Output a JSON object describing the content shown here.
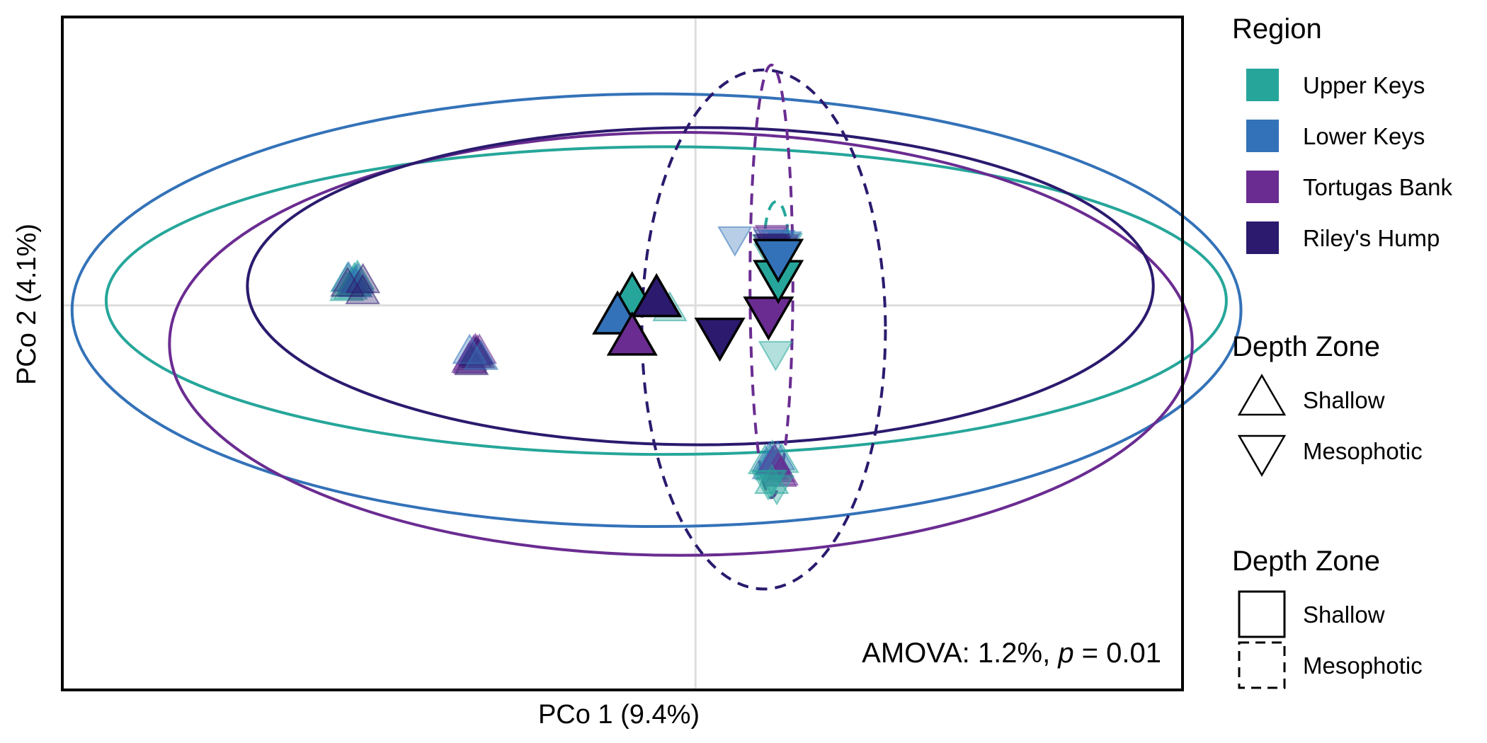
{
  "chart_data": {
    "type": "scatter",
    "title": "",
    "xlabel": "PCo 1 (9.4%)",
    "ylabel": "PCo 2 (4.1%)",
    "xlim": [
      -0.65,
      0.5
    ],
    "ylim": [
      -0.4,
      0.3
    ],
    "grid": {
      "major_lines_at_zero": true
    },
    "annotation": {
      "prefix": "AMOVA: 1.2%, ",
      "italic": "p",
      "suffix": " =  0.01"
    },
    "legend": {
      "placement": "right",
      "region_title": "Region",
      "regions": [
        {
          "name": "Upper Keys",
          "color": "#26A69A"
        },
        {
          "name": "Lower Keys",
          "color": "#3372B8"
        },
        {
          "name": "Tortugas Bank",
          "color": "#6A2C91"
        },
        {
          "name": "Riley's Hump",
          "color": "#2B1A6E"
        }
      ],
      "shape_title": "Depth Zone",
      "shapes": [
        {
          "name": "Shallow",
          "marker": "triangle-up"
        },
        {
          "name": "Mesophotic",
          "marker": "triangle-down"
        }
      ],
      "linetype_title": "Depth Zone",
      "linetypes": [
        {
          "name": "Shallow",
          "dash": "solid"
        },
        {
          "name": "Mesophotic",
          "dash": "dashed"
        }
      ]
    },
    "centroids": [
      {
        "region": "Upper Keys",
        "depth": "Shallow",
        "x": -0.065,
        "y": 0.007
      },
      {
        "region": "Lower Keys",
        "depth": "Shallow",
        "x": -0.08,
        "y": -0.013
      },
      {
        "region": "Riley's Hump",
        "depth": "Shallow",
        "x": -0.04,
        "y": 0.005
      },
      {
        "region": "Tortugas Bank",
        "depth": "Shallow",
        "x": -0.065,
        "y": -0.035
      },
      {
        "region": "Riley's Hump",
        "depth": "Mesophotic",
        "x": 0.025,
        "y": -0.03
      },
      {
        "region": "Tortugas Bank",
        "depth": "Mesophotic",
        "x": 0.075,
        "y": -0.008
      },
      {
        "region": "Upper Keys",
        "depth": "Mesophotic",
        "x": 0.085,
        "y": 0.03
      },
      {
        "region": "Lower Keys",
        "depth": "Mesophotic",
        "x": 0.085,
        "y": 0.052
      }
    ],
    "clusters": [
      {
        "x": -0.35,
        "y": 0.022,
        "region": "Upper Keys",
        "depth": "Shallow",
        "n": 8
      },
      {
        "x": -0.35,
        "y": 0.02,
        "region": "Lower Keys",
        "depth": "Shallow",
        "n": 3
      },
      {
        "x": -0.35,
        "y": 0.02,
        "region": "Riley's Hump",
        "depth": "Shallow",
        "n": 3
      },
      {
        "x": -0.225,
        "y": -0.052,
        "region": "Tortugas Bank",
        "depth": "Shallow",
        "n": 8
      },
      {
        "x": -0.225,
        "y": -0.055,
        "region": "Riley's Hump",
        "depth": "Shallow",
        "n": 3
      },
      {
        "x": -0.225,
        "y": -0.053,
        "region": "Lower Keys",
        "depth": "Shallow",
        "n": 2
      },
      {
        "x": 0.08,
        "y": -0.165,
        "region": "Upper Keys",
        "depth": "Shallow",
        "n": 6
      },
      {
        "x": 0.08,
        "y": -0.165,
        "region": "Lower Keys",
        "depth": "Shallow",
        "n": 4
      },
      {
        "x": 0.08,
        "y": -0.17,
        "region": "Tortugas Bank",
        "depth": "Shallow",
        "n": 4
      },
      {
        "x": 0.08,
        "y": -0.185,
        "region": "Upper Keys",
        "depth": "Mesophotic",
        "n": 3
      },
      {
        "x": 0.085,
        "y": 0.06,
        "region": "Upper Keys",
        "depth": "Mesophotic",
        "n": 8
      },
      {
        "x": 0.085,
        "y": 0.065,
        "region": "Tortugas Bank",
        "depth": "Mesophotic",
        "n": 5
      },
      {
        "x": 0.085,
        "y": 0.06,
        "region": "Lower Keys",
        "depth": "Mesophotic",
        "n": 4
      },
      {
        "x": 0.085,
        "y": 0.06,
        "region": "Riley's Hump",
        "depth": "Mesophotic",
        "n": 3
      },
      {
        "x": 0.035,
        "y": 0.065,
        "region": "Lower Keys",
        "depth": "Mesophotic",
        "n": 1
      },
      {
        "x": -0.02,
        "y": -0.012,
        "region": "Upper Keys",
        "depth": "Shallow",
        "n": 1
      },
      {
        "x": 0.08,
        "y": -0.055,
        "region": "Upper Keys",
        "depth": "Mesophotic",
        "n": 1
      },
      {
        "x": 0.08,
        "y": -0.19,
        "region": "Upper Keys",
        "depth": "Shallow",
        "n": 1
      }
    ],
    "ellipses": [
      {
        "region": "Lower Keys",
        "depth": "Shallow",
        "cx": -0.04,
        "cy": -0.005,
        "rx": 0.6,
        "ry": 0.225
      },
      {
        "region": "Upper Keys",
        "depth": "Shallow",
        "cx": -0.03,
        "cy": 0.005,
        "rx": 0.575,
        "ry": 0.16
      },
      {
        "region": "Tortugas Bank",
        "depth": "Shallow",
        "cx": -0.015,
        "cy": -0.04,
        "rx": 0.525,
        "ry": 0.22
      },
      {
        "region": "Riley's Hump",
        "depth": "Shallow",
        "cx": 0.005,
        "cy": 0.02,
        "rx": 0.465,
        "ry": 0.165
      },
      {
        "region": "Riley's Hump",
        "depth": "Mesophotic",
        "cx": 0.07,
        "cy": -0.025,
        "rx": 0.125,
        "ry": 0.27
      },
      {
        "region": "Tortugas Bank",
        "depth": "Mesophotic",
        "cx": 0.078,
        "cy": 0.025,
        "rx": 0.022,
        "ry": 0.225
      },
      {
        "region": "Upper Keys",
        "depth": "Mesophotic",
        "cx": 0.083,
        "cy": 0.068,
        "rx": 0.012,
        "ry": 0.04
      },
      {
        "region": "Lower Keys",
        "depth": "Mesophotic",
        "cx": 0.083,
        "cy": 0.053,
        "rx": 0.013,
        "ry": 0.011
      }
    ]
  }
}
